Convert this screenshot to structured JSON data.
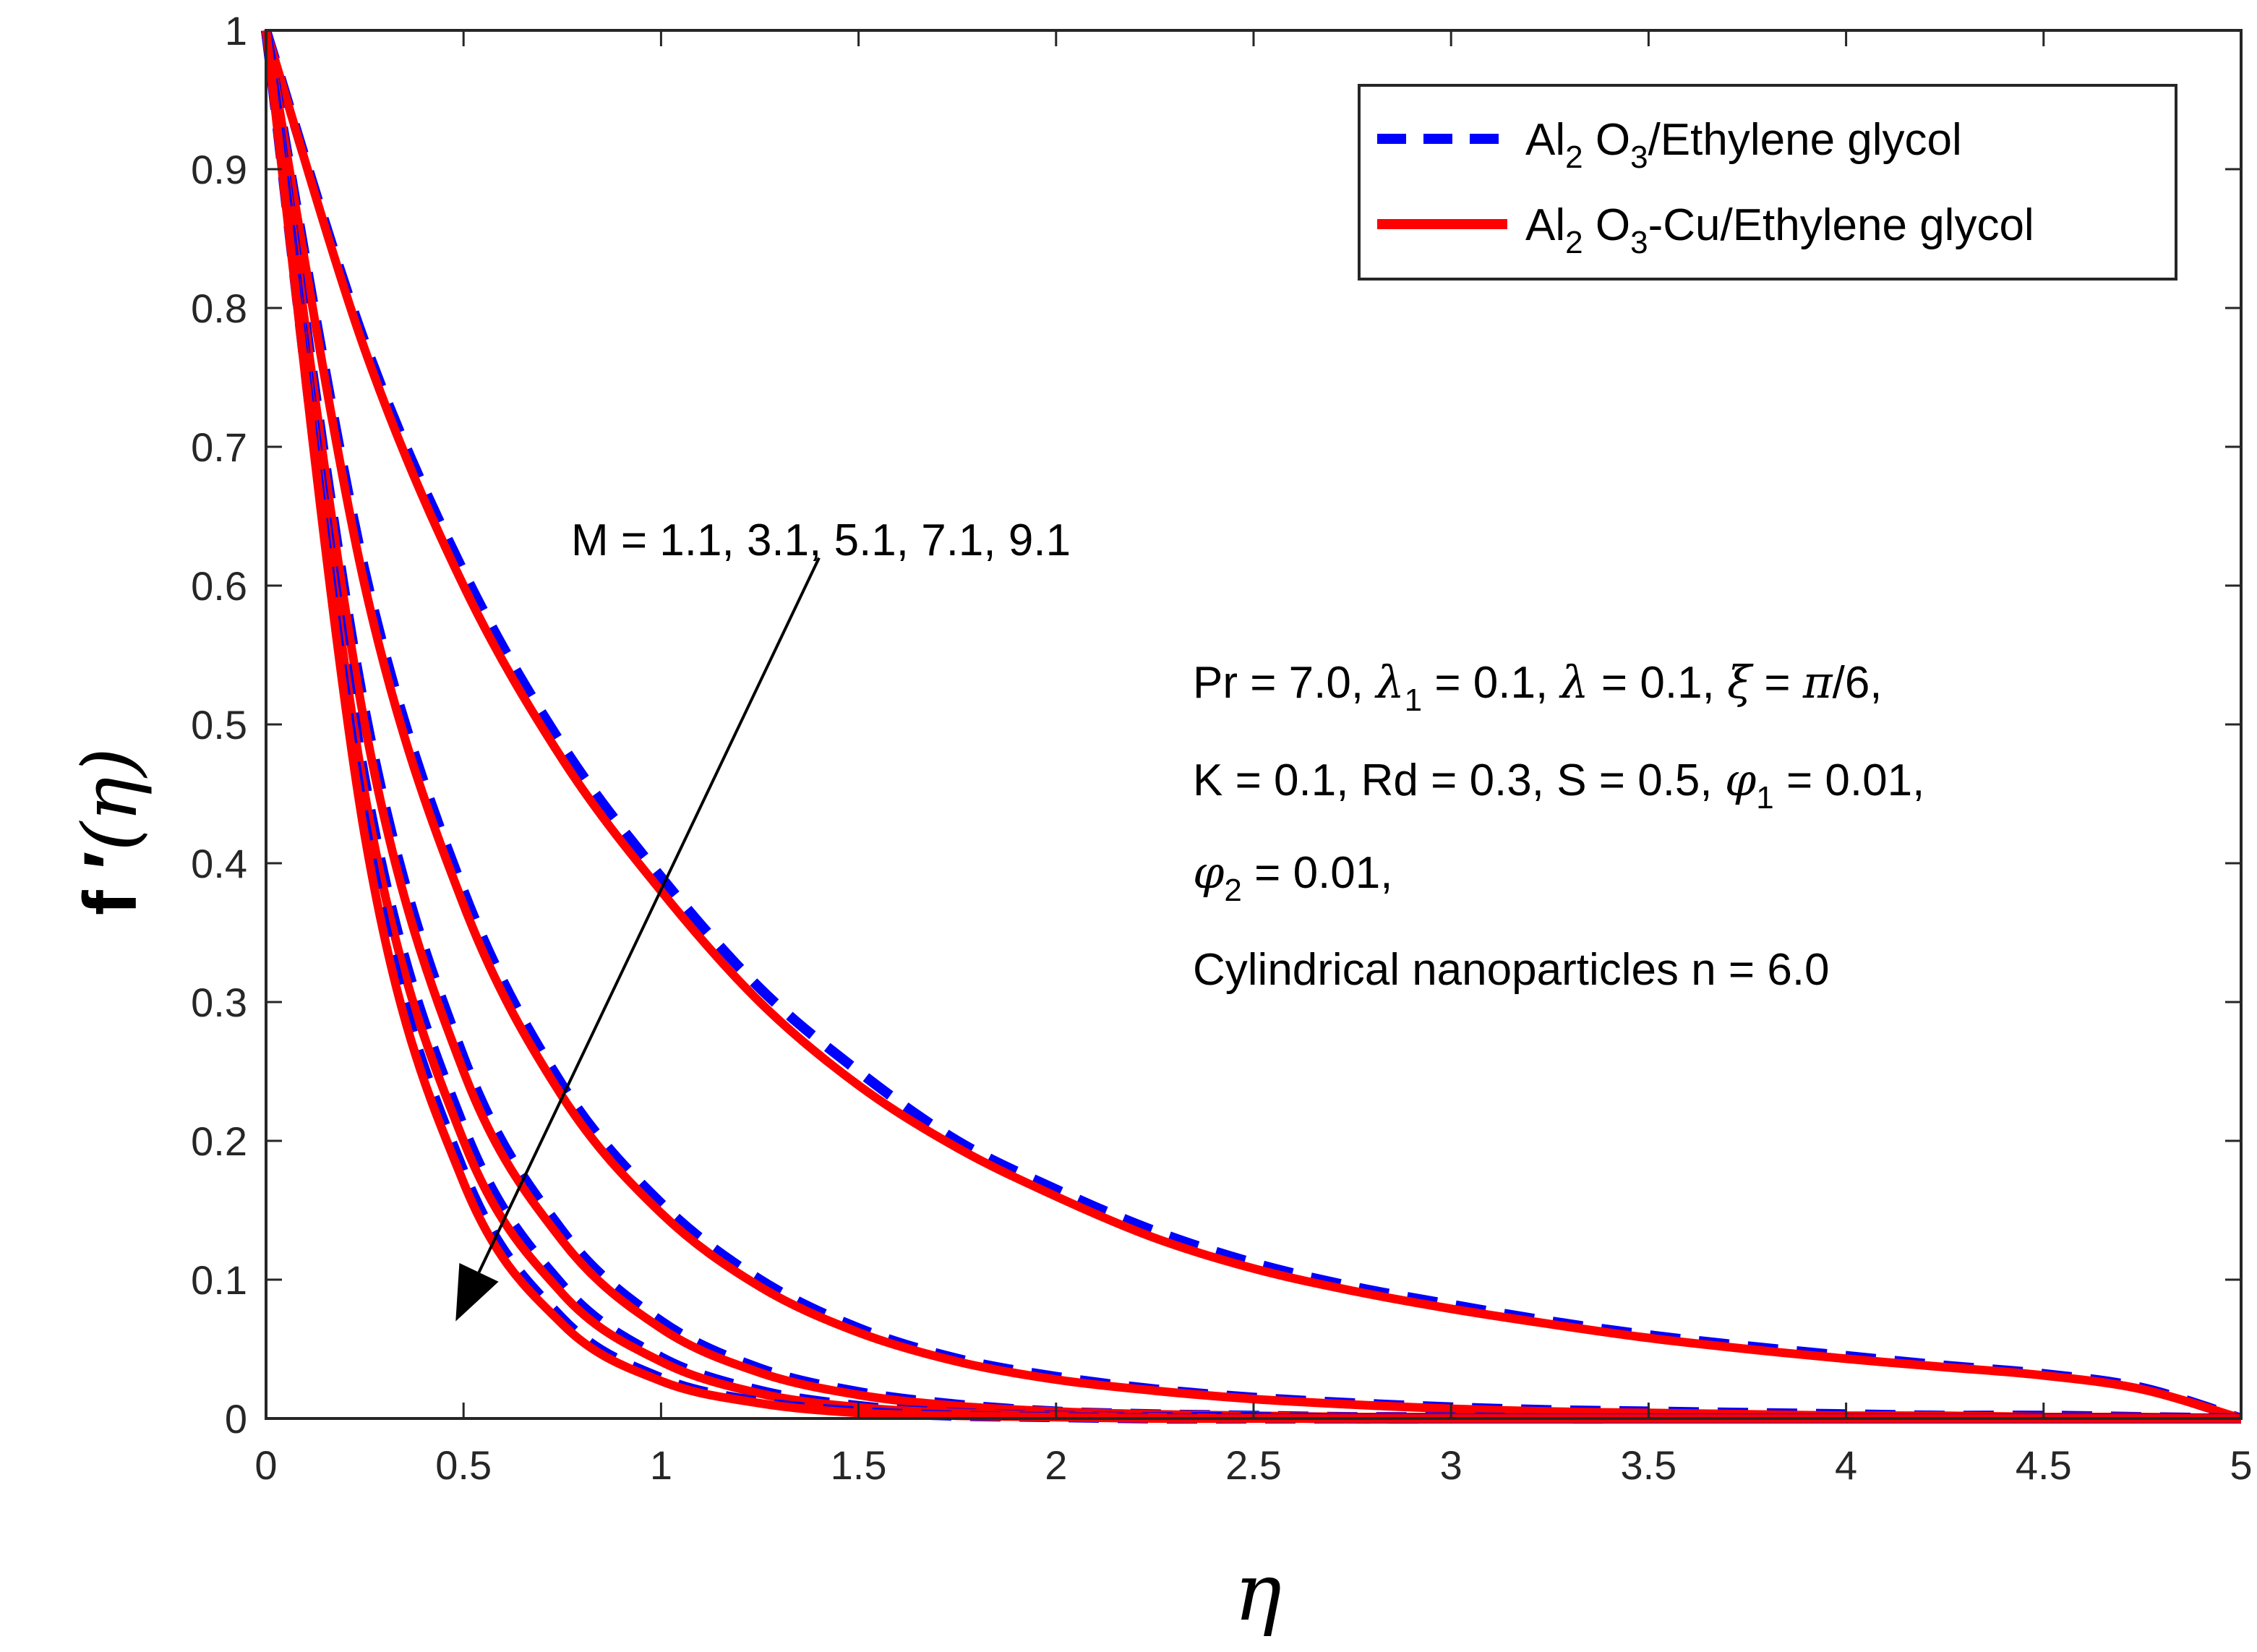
{
  "chart_data": {
    "type": "line",
    "title": "",
    "xlabel": "η",
    "ylabel": "f ′(η)",
    "xlim": [
      0,
      5
    ],
    "ylim": [
      0,
      1
    ],
    "xticks": [
      "0",
      "0.5",
      "1",
      "1.5",
      "2",
      "2.5",
      "3",
      "3.5",
      "4",
      "4.5",
      "5"
    ],
    "yticks": [
      "0",
      "0.1",
      "0.2",
      "0.3",
      "0.4",
      "0.5",
      "0.6",
      "0.7",
      "0.8",
      "0.9",
      "1"
    ],
    "grid": false,
    "legend_position": "top-right",
    "legend": [
      {
        "base": "Al",
        "sub1": "2",
        "mid": " O",
        "sub2": "3",
        "tail": "/Ethylene glycol",
        "style": "dashed",
        "color": "#0000FF"
      },
      {
        "base": "Al",
        "sub1": "2",
        "mid": " O",
        "sub2": "3",
        "tail": "-Cu/Ethylene glycol",
        "style": "solid",
        "color": "#FF0000"
      }
    ],
    "x": [
      0,
      0.25,
      0.5,
      0.75,
      1,
      1.25,
      1.5,
      1.75,
      2,
      2.25,
      2.5,
      2.75,
      3,
      3.25,
      3.5,
      3.75,
      4,
      4.25,
      4.5,
      4.75,
      5
    ],
    "series": [
      {
        "name": "Al2O3/Ethylene glycol, M = 1.1",
        "color": "#0000FF",
        "dash": true,
        "values": [
          1,
          0.775,
          0.61,
          0.485,
          0.39,
          0.31,
          0.25,
          0.2,
          0.165,
          0.135,
          0.112,
          0.095,
          0.082,
          0.07,
          0.06,
          0.052,
          0.045,
          0.038,
          0.032,
          0.022,
          0
        ]
      },
      {
        "name": "Al2O3-Cu/Ethylene glycol, M = 1.1",
        "color": "#FF0000",
        "dash": false,
        "values": [
          1,
          0.77,
          0.6,
          0.475,
          0.38,
          0.3,
          0.24,
          0.195,
          0.16,
          0.13,
          0.108,
          0.092,
          0.079,
          0.068,
          0.058,
          0.05,
          0.043,
          0.037,
          0.031,
          0.021,
          0
        ]
      },
      {
        "name": "Al2O3/Ethylene glycol, M = 3.1",
        "color": "#0000FF",
        "dash": true,
        "values": [
          1,
          0.61,
          0.38,
          0.24,
          0.155,
          0.1,
          0.065,
          0.043,
          0.03,
          0.021,
          0.015,
          0.011,
          0.008,
          0.006,
          0.005,
          0.004,
          0.003,
          0.002,
          0.002,
          0.001,
          0
        ]
      },
      {
        "name": "Al2O3-Cu/Ethylene glycol, M = 3.1",
        "color": "#FF0000",
        "dash": false,
        "values": [
          1,
          0.6,
          0.37,
          0.232,
          0.148,
          0.095,
          0.062,
          0.041,
          0.028,
          0.02,
          0.014,
          0.01,
          0.007,
          0.005,
          0.004,
          0.003,
          0.002,
          0.002,
          0.001,
          0.001,
          0
        ]
      },
      {
        "name": "Al2O3/Ethylene glycol, M = 5.1",
        "color": "#0000FF",
        "dash": true,
        "values": [
          1,
          0.51,
          0.26,
          0.135,
          0.07,
          0.036,
          0.019,
          0.01,
          0.005,
          0.003,
          0.002,
          0.001,
          0.001,
          0,
          0,
          0,
          0,
          0,
          0,
          0,
          0
        ]
      },
      {
        "name": "Al2O3-Cu/Ethylene glycol, M = 5.1",
        "color": "#FF0000",
        "dash": false,
        "values": [
          1,
          0.5,
          0.25,
          0.128,
          0.065,
          0.033,
          0.017,
          0.009,
          0.005,
          0.003,
          0.002,
          0.001,
          0.001,
          0,
          0,
          0,
          0,
          0,
          0,
          0,
          0
        ]
      },
      {
        "name": "Al2O3/Ethylene glycol, M = 7.1",
        "color": "#0000FF",
        "dash": true,
        "values": [
          1,
          0.46,
          0.21,
          0.096,
          0.044,
          0.02,
          0.009,
          0.004,
          0.002,
          0.001,
          0.001,
          0,
          0,
          0,
          0,
          0,
          0,
          0,
          0,
          0,
          0
        ]
      },
      {
        "name": "Al2O3-Cu/Ethylene glycol, M = 7.1",
        "color": "#FF0000",
        "dash": false,
        "values": [
          1,
          0.45,
          0.2,
          0.09,
          0.041,
          0.018,
          0.008,
          0.004,
          0.002,
          0.001,
          0,
          0,
          0,
          0,
          0,
          0,
          0,
          0,
          0,
          0,
          0
        ]
      },
      {
        "name": "Al2O3/Ethylene glycol, M = 9.1",
        "color": "#0000FF",
        "dash": true,
        "values": [
          1,
          0.43,
          0.178,
          0.072,
          0.029,
          0.012,
          0.005,
          0.002,
          0.001,
          0,
          0,
          0,
          0,
          0,
          0,
          0,
          0,
          0,
          0,
          0,
          0
        ]
      },
      {
        "name": "Al2O3-Cu/Ethylene glycol, M = 9.1",
        "color": "#FF0000",
        "dash": false,
        "values": [
          1,
          0.42,
          0.17,
          0.068,
          0.027,
          0.011,
          0.004,
          0.002,
          0.001,
          0,
          0,
          0,
          0,
          0,
          0,
          0,
          0,
          0,
          0,
          0,
          0
        ]
      }
    ],
    "arrow": {
      "from": [
        1.4,
        0.62
      ],
      "to": [
        0.48,
        0.07
      ]
    },
    "annotations": {
      "m_label": "M = 1.1, 3.1, 5.1, 7.1, 9.1",
      "param_line1_a": "Pr = 7.0, ",
      "param_line1_lambda1": "λ",
      "param_line1_lambda1_sub": "1",
      "param_line1_b": " = 0.1, ",
      "param_line1_lambda": "λ",
      "param_line1_c": " = 0.1, ",
      "param_line1_xi": "ξ",
      "param_line1_d": " = ",
      "param_line1_pi": "π",
      "param_line1_e": "/6,",
      "param_line2_a": "K = 0.1, Rd = 0.3, S = 0.5, ",
      "param_line2_phi": "φ",
      "param_line2_phi_sub": "1",
      "param_line2_b": " = 0.01,",
      "param_line3_phi": "φ",
      "param_line3_phi_sub": "2",
      "param_line3_b": " = 0.01,",
      "param_line4": "Cylindrical nanoparticles n = 6.0"
    },
    "ylabel_parts": {
      "f": "f",
      "prime": " ′",
      "open": "(",
      "eta": "η",
      "close": ")"
    }
  }
}
